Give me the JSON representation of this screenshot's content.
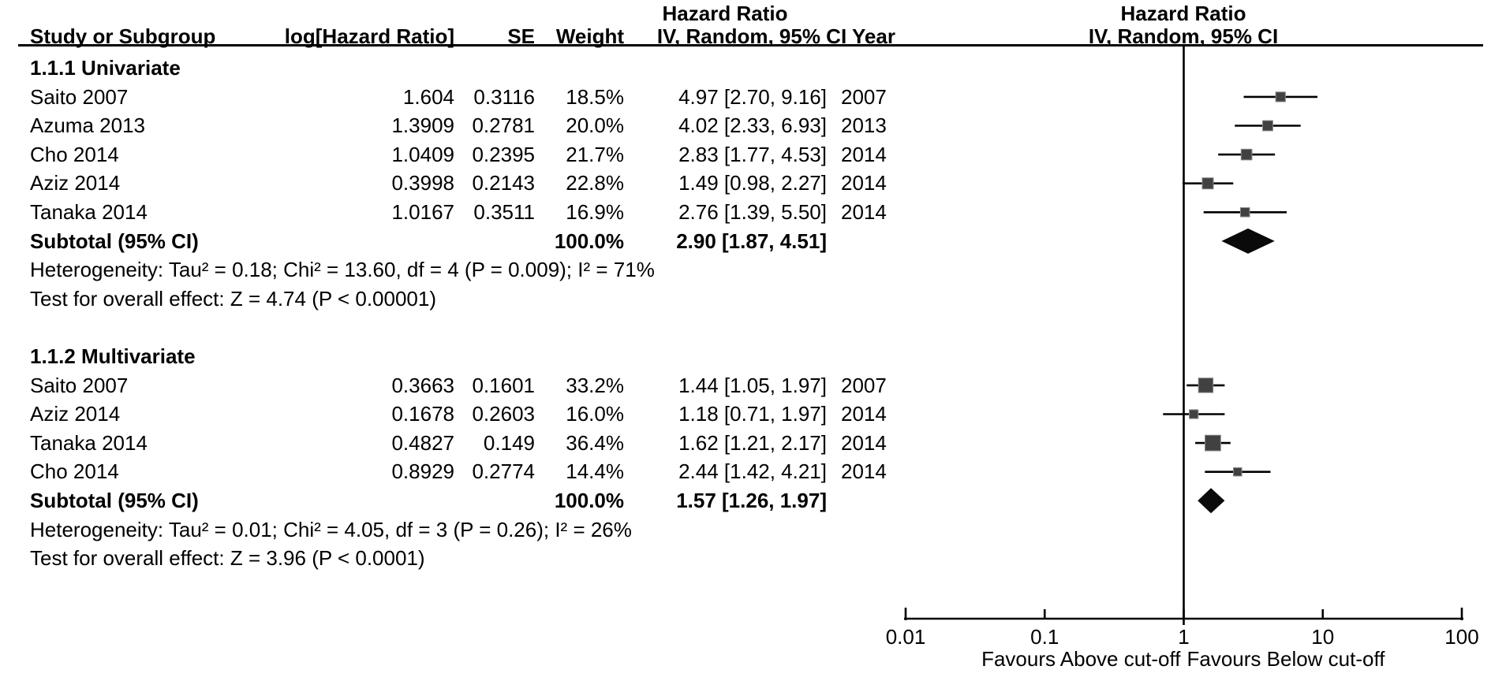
{
  "header": {
    "hr_title": "Hazard Ratio",
    "hr_title_right": "Hazard Ratio",
    "col_study": "Study or Subgroup",
    "col_loghr": "log[Hazard Ratio]",
    "col_se": "SE",
    "col_weight": "Weight",
    "col_ci": "IV, Random, 95% CI",
    "col_year": "Year",
    "ci_title_right": "IV, Random, 95% CI"
  },
  "chart_data": {
    "type": "forest",
    "x_scale": "log10",
    "x_range": [
      0.01,
      100
    ],
    "null_line": 1,
    "axis_ticks": [
      {
        "value": 0.01,
        "label": "0.01"
      },
      {
        "value": 0.1,
        "label": "0.1"
      },
      {
        "value": 1,
        "label": "1"
      },
      {
        "value": 10,
        "label": "10"
      },
      {
        "value": 100,
        "label": "100"
      }
    ],
    "footer_left": "Favours Above cut-off",
    "footer_right": "Favours Below cut-off",
    "groups": [
      {
        "label": "1.1.1 Univariate",
        "studies": [
          {
            "study": "Saito 2007",
            "log_hr": "1.604",
            "se": "0.3116",
            "weight": "18.5%",
            "weight_pct": 18.5,
            "hr": 4.97,
            "ci_low": 2.7,
            "ci_high": 9.16,
            "ci_text": "4.97 [2.70, 9.16]",
            "year": "2007"
          },
          {
            "study": "Azuma 2013",
            "log_hr": "1.3909",
            "se": "0.2781",
            "weight": "20.0%",
            "weight_pct": 20.0,
            "hr": 4.02,
            "ci_low": 2.33,
            "ci_high": 6.93,
            "ci_text": "4.02 [2.33, 6.93]",
            "year": "2013"
          },
          {
            "study": "Cho 2014",
            "log_hr": "1.0409",
            "se": "0.2395",
            "weight": "21.7%",
            "weight_pct": 21.7,
            "hr": 2.83,
            "ci_low": 1.77,
            "ci_high": 4.53,
            "ci_text": "2.83 [1.77, 4.53]",
            "year": "2014"
          },
          {
            "study": "Aziz 2014",
            "log_hr": "0.3998",
            "se": "0.2143",
            "weight": "22.8%",
            "weight_pct": 22.8,
            "hr": 1.49,
            "ci_low": 0.98,
            "ci_high": 2.27,
            "ci_text": "1.49 [0.98, 2.27]",
            "year": "2014"
          },
          {
            "study": "Tanaka 2014",
            "log_hr": "1.0167",
            "se": "0.3511",
            "weight": "16.9%",
            "weight_pct": 16.9,
            "hr": 2.76,
            "ci_low": 1.39,
            "ci_high": 5.5,
            "ci_text": "2.76 [1.39, 5.50]",
            "year": "2014"
          }
        ],
        "subtotal": {
          "label": "Subtotal (95% CI)",
          "weight": "100.0%",
          "hr": 2.9,
          "ci_low": 1.87,
          "ci_high": 4.51,
          "ci_text": "2.90 [1.87, 4.51]"
        },
        "heterogeneity": "Heterogeneity: Tau² = 0.18; Chi² = 13.60, df = 4 (P = 0.009); I² = 71%",
        "overall_effect": "Test for overall effect: Z = 4.74 (P < 0.00001)"
      },
      {
        "label": "1.1.2 Multivariate",
        "studies": [
          {
            "study": "Saito 2007",
            "log_hr": "0.3663",
            "se": "0.1601",
            "weight": "33.2%",
            "weight_pct": 33.2,
            "hr": 1.44,
            "ci_low": 1.05,
            "ci_high": 1.97,
            "ci_text": "1.44 [1.05, 1.97]",
            "year": "2007"
          },
          {
            "study": "Aziz 2014",
            "log_hr": "0.1678",
            "se": "0.2603",
            "weight": "16.0%",
            "weight_pct": 16.0,
            "hr": 1.18,
            "ci_low": 0.71,
            "ci_high": 1.97,
            "ci_text": "1.18 [0.71, 1.97]",
            "year": "2014"
          },
          {
            "study": "Tanaka 2014",
            "log_hr": "0.4827",
            "se": "0.149",
            "weight": "36.4%",
            "weight_pct": 36.4,
            "hr": 1.62,
            "ci_low": 1.21,
            "ci_high": 2.17,
            "ci_text": "1.62 [1.21, 2.17]",
            "year": "2014"
          },
          {
            "study": "Cho 2014",
            "log_hr": "0.8929",
            "se": "0.2774",
            "weight": "14.4%",
            "weight_pct": 14.4,
            "hr": 2.44,
            "ci_low": 1.42,
            "ci_high": 4.21,
            "ci_text": "2.44 [1.42, 4.21]",
            "year": "2014"
          }
        ],
        "subtotal": {
          "label": "Subtotal (95% CI)",
          "weight": "100.0%",
          "hr": 1.57,
          "ci_low": 1.26,
          "ci_high": 1.97,
          "ci_text": "1.57 [1.26, 1.97]"
        },
        "heterogeneity": "Heterogeneity: Tau² = 0.01; Chi² = 4.05, df = 3 (P = 0.26); I² = 26%",
        "overall_effect": "Test for overall effect: Z = 3.96 (P < 0.0001)"
      }
    ]
  },
  "colors": {
    "text": "#000000",
    "line": "#000000",
    "square": "#414141",
    "square_border": "#8a8a8a",
    "diamond": "#0a0a0a"
  }
}
